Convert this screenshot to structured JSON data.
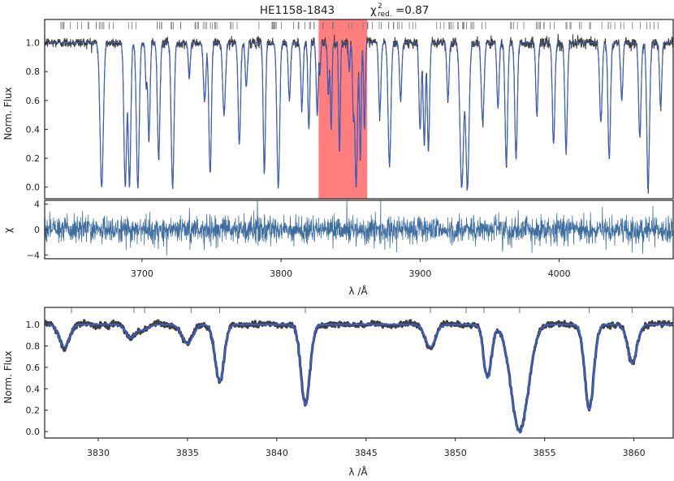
{
  "chart_data": [
    {
      "type": "line",
      "panel": "top-spectrum",
      "title": "HE1158-1843",
      "title_chi": "χ",
      "title_chi_sup": "2",
      "title_chi_sub": "red.",
      "title_value": "=0.87",
      "ylabel": "Norm. Flux",
      "xlim": [
        3630,
        4082
      ],
      "ylim": [
        -0.08,
        1.16
      ],
      "yticks": [
        0.0,
        0.2,
        0.4,
        0.6,
        0.8,
        1.0
      ],
      "ytick_labels": [
        "0.0",
        "0.2",
        "0.4",
        "0.6",
        "0.8",
        "1.0"
      ],
      "highlight_range": [
        3827,
        3862
      ],
      "highlight_color": "#ff7f7f",
      "series": [
        {
          "color": "#404040"
        },
        {
          "color": "#3a5fcd"
        }
      ],
      "lines": [
        [
          3671,
          0.0,
          1.2
        ],
        [
          3688,
          0.0,
          1.0
        ],
        [
          3691,
          0.0,
          0.9
        ],
        [
          3697,
          0.0,
          1.0
        ],
        [
          3703,
          0.7,
          0.6
        ],
        [
          3705,
          0.35,
          0.8
        ],
        [
          3712,
          0.2,
          0.9
        ],
        [
          3722,
          0.0,
          1.0
        ],
        [
          3734,
          0.75,
          0.7
        ],
        [
          3745,
          0.6,
          0.9
        ],
        [
          3749,
          0.1,
          0.9
        ],
        [
          3759,
          0.5,
          1.0
        ],
        [
          3770,
          0.3,
          0.9
        ],
        [
          3775,
          0.7,
          0.8
        ],
        [
          3788,
          0.1,
          0.8
        ],
        [
          3798,
          0.0,
          1.0
        ],
        [
          3806,
          0.6,
          0.8
        ],
        [
          3815,
          0.55,
          0.8
        ],
        [
          3820,
          0.4,
          0.7
        ],
        [
          3826,
          0.5,
          0.7
        ],
        [
          3828,
          0.8,
          0.5
        ],
        [
          3834,
          0.65,
          0.6
        ],
        [
          3836,
          0.4,
          0.6
        ],
        [
          3842,
          0.25,
          0.6
        ],
        [
          3849,
          0.8,
          0.5
        ],
        [
          3852,
          0.5,
          0.6
        ],
        [
          3854,
          0.0,
          0.9
        ],
        [
          3857,
          0.2,
          0.6
        ],
        [
          3860,
          0.4,
          0.6
        ],
        [
          3871,
          0.5,
          0.8
        ],
        [
          3878,
          0.15,
          1.0
        ],
        [
          3886,
          0.6,
          0.8
        ],
        [
          3900,
          0.4,
          0.8
        ],
        [
          3903,
          0.3,
          0.8
        ],
        [
          3906,
          0.25,
          0.8
        ],
        [
          3920,
          0.6,
          0.8
        ],
        [
          3930,
          0.0,
          1.3
        ],
        [
          3934,
          0.0,
          1.2
        ],
        [
          3945,
          0.45,
          1.0
        ],
        [
          3956,
          0.55,
          0.8
        ],
        [
          3962,
          0.15,
          0.9
        ],
        [
          3969,
          0.2,
          0.9
        ],
        [
          3984,
          0.5,
          0.8
        ],
        [
          3996,
          0.3,
          0.9
        ],
        [
          4005,
          0.25,
          0.9
        ],
        [
          4030,
          0.45,
          0.9
        ],
        [
          4036,
          0.2,
          0.9
        ],
        [
          4045,
          0.6,
          0.8
        ],
        [
          4058,
          0.35,
          0.9
        ],
        [
          4064,
          0.0,
          1.0
        ],
        [
          4073,
          0.55,
          0.8
        ]
      ]
    },
    {
      "type": "line",
      "panel": "residuals",
      "ylabel": "χ",
      "xlabel": "λ /Å",
      "xlim": [
        3630,
        4082
      ],
      "ylim": [
        -4.6,
        4.6
      ],
      "yticks": [
        -4,
        0,
        4
      ],
      "ytick_labels": [
        "−4",
        "0",
        "4"
      ],
      "xticks": [
        3700,
        3800,
        3900,
        4000
      ],
      "xtick_labels": [
        "3700",
        "3800",
        "3900",
        "4000"
      ],
      "series": [
        {
          "color": "#3e6ea0"
        }
      ]
    },
    {
      "type": "line",
      "panel": "zoom",
      "ylabel": "Norm. Flux",
      "xlabel": "λ /Å",
      "xlim": [
        3827,
        3862.2
      ],
      "ylim": [
        -0.06,
        1.16
      ],
      "yticks": [
        0.0,
        0.2,
        0.4,
        0.6,
        0.8,
        1.0
      ],
      "ytick_labels": [
        "0.0",
        "0.2",
        "0.4",
        "0.6",
        "0.8",
        "1.0"
      ],
      "xticks": [
        3830,
        3835,
        3840,
        3845,
        3850,
        3855,
        3860
      ],
      "xtick_labels": [
        "3830",
        "3835",
        "3840",
        "3845",
        "3850",
        "3855",
        "3860"
      ],
      "series": [
        {
          "color": "#404040"
        },
        {
          "color": "#3a5fcd"
        }
      ],
      "lines": [
        [
          3828.1,
          0.79,
          0.28
        ],
        [
          3831.8,
          0.88,
          0.26
        ],
        [
          3832.5,
          0.95,
          0.3
        ],
        [
          3835.0,
          0.82,
          0.3
        ],
        [
          3836.8,
          0.47,
          0.25
        ],
        [
          3841.6,
          0.25,
          0.25
        ],
        [
          3848.6,
          0.79,
          0.28
        ],
        [
          3851.8,
          0.5,
          0.22
        ],
        [
          3853.6,
          0.0,
          0.48
        ],
        [
          3857.5,
          0.21,
          0.25
        ],
        [
          3859.9,
          0.64,
          0.26
        ]
      ],
      "marker_ticks": [
        3828.5,
        3832.0,
        3832.6,
        3835.2,
        3836.8,
        3841.6,
        3848.6,
        3850.6,
        3851.6,
        3853.6,
        3857.5,
        3859.9
      ]
    }
  ]
}
